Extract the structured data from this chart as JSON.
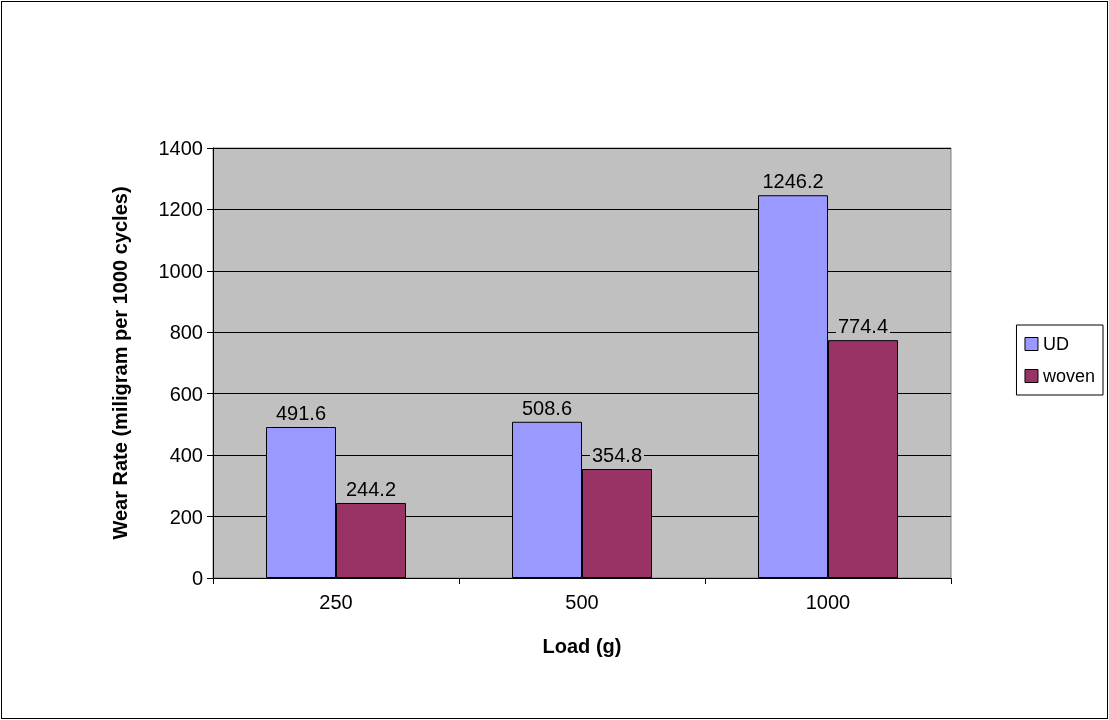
{
  "chart_data": {
    "type": "bar",
    "xlabel": "Load (g)",
    "ylabel": "Wear Rate (miligram per 1000 cycles)",
    "categories": [
      "250",
      "500",
      "1000"
    ],
    "series": [
      {
        "name": "UD",
        "color": "#9999ff",
        "values": [
          491.6,
          508.6,
          1246.2
        ]
      },
      {
        "name": "woven",
        "color": "#993366",
        "values": [
          244.2,
          354.8,
          774.4
        ]
      }
    ],
    "ylim": [
      0,
      1400
    ],
    "yticks": [
      0,
      200,
      400,
      600,
      800,
      1000,
      1200,
      1400
    ],
    "grid": "y",
    "legend": "right",
    "data_labels": true
  }
}
